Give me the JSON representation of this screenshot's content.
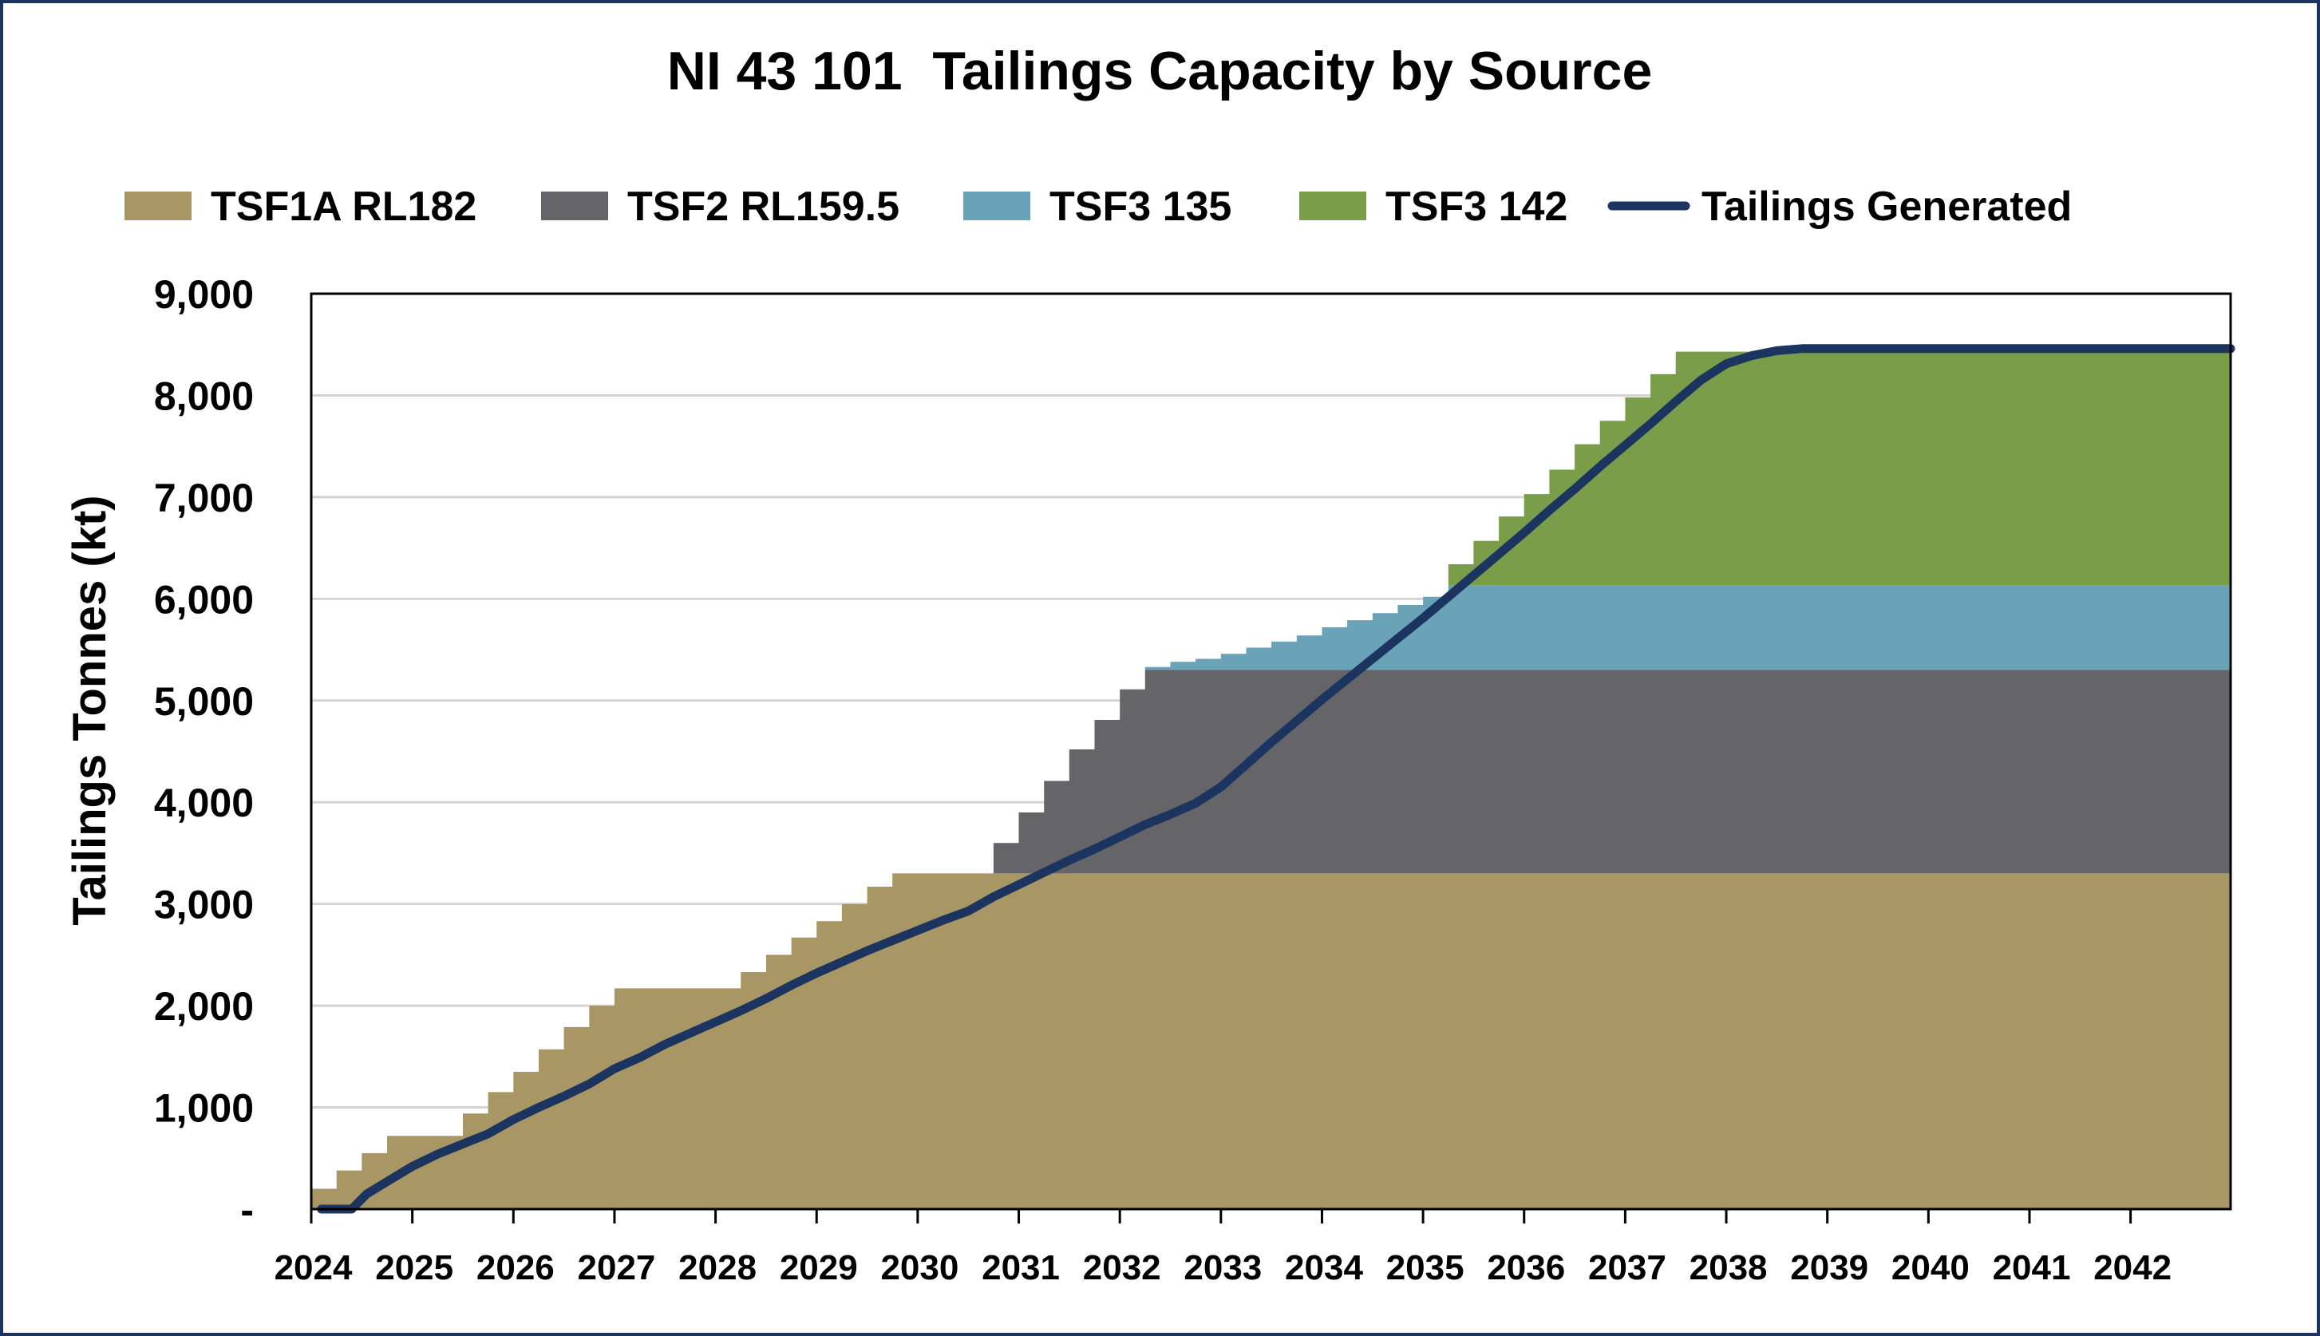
{
  "chart_data": {
    "type": "area",
    "title": "NI 43 101  Tailings Capacity by Source",
    "xlabel": "",
    "ylabel": "Tailings Tonnes (kt)",
    "ylim": [
      0,
      9000
    ],
    "xlim": [
      2024,
      2042.99
    ],
    "grid": true,
    "legend_position": "top",
    "y_ticks": [
      {
        "value": 0,
        "label": "-"
      },
      {
        "value": 1000,
        "label": "1,000"
      },
      {
        "value": 2000,
        "label": "2,000"
      },
      {
        "value": 3000,
        "label": "3,000"
      },
      {
        "value": 4000,
        "label": "4,000"
      },
      {
        "value": 5000,
        "label": "5,000"
      },
      {
        "value": 6000,
        "label": "6,000"
      },
      {
        "value": 7000,
        "label": "7,000"
      },
      {
        "value": 8000,
        "label": "8,000"
      },
      {
        "value": 9000,
        "label": "9,000"
      }
    ],
    "x_ticks": [
      "2024",
      "2025",
      "2026",
      "2027",
      "2028",
      "2029",
      "2030",
      "2031",
      "2032",
      "2033",
      "2034",
      "2035",
      "2036",
      "2037",
      "2038",
      "2039",
      "2040",
      "2041",
      "2042"
    ],
    "x_step": 0.25,
    "series": [
      {
        "name": "TSF1A RL182",
        "kind": "stacked-step-area",
        "color": "#A89664",
        "values": [
          200,
          380,
          550,
          720,
          720,
          720,
          940,
          1150,
          1350,
          1570,
          1790,
          2000,
          2170,
          2170,
          2170,
          2170,
          2170,
          2330,
          2500,
          2670,
          2830,
          3000,
          3170,
          3300,
          3300,
          3300,
          3300,
          3300,
          3300,
          3300,
          3300,
          3300,
          3300,
          3300,
          3300,
          3300,
          3300,
          3300,
          3300,
          3300,
          3300,
          3300,
          3300,
          3300,
          3300,
          3300,
          3300,
          3300,
          3300,
          3300,
          3300,
          3300,
          3300,
          3300,
          3300,
          3300,
          3300,
          3300,
          3300,
          3300,
          3300,
          3300,
          3300,
          3300,
          3300,
          3300,
          3300,
          3300,
          3300,
          3300,
          3300,
          3300,
          3300,
          3300,
          3300,
          3300
        ]
      },
      {
        "name": "TSF2 RL159.5",
        "kind": "stacked-step-area",
        "color": "#646469",
        "values": [
          0,
          0,
          0,
          0,
          0,
          0,
          0,
          0,
          0,
          0,
          0,
          0,
          0,
          0,
          0,
          0,
          0,
          0,
          0,
          0,
          0,
          0,
          0,
          0,
          0,
          0,
          0,
          300,
          600,
          910,
          1220,
          1510,
          1810,
          2000,
          2000,
          2000,
          2000,
          2000,
          2000,
          2000,
          2000,
          2000,
          2000,
          2000,
          2000,
          2000,
          2000,
          2000,
          2000,
          2000,
          2000,
          2000,
          2000,
          2000,
          2000,
          2000,
          2000,
          2000,
          2000,
          2000,
          2000,
          2000,
          2000,
          2000,
          2000,
          2000,
          2000,
          2000,
          2000,
          2000,
          2000,
          2000,
          2000,
          2000,
          2000,
          2000
        ]
      },
      {
        "name": "TSF3 135",
        "kind": "stacked-step-area",
        "color": "#6AA3B8",
        "values": [
          0,
          0,
          0,
          0,
          0,
          0,
          0,
          0,
          0,
          0,
          0,
          0,
          0,
          0,
          0,
          0,
          0,
          0,
          0,
          0,
          0,
          0,
          0,
          0,
          0,
          0,
          0,
          0,
          0,
          0,
          0,
          0,
          0,
          30,
          80,
          110,
          160,
          220,
          280,
          340,
          420,
          490,
          560,
          640,
          720,
          830,
          830,
          830,
          830,
          830,
          830,
          830,
          830,
          830,
          830,
          830,
          830,
          830,
          830,
          830,
          830,
          830,
          830,
          830,
          830,
          830,
          830,
          830,
          830,
          830,
          830,
          830,
          830,
          830,
          830,
          830
        ]
      },
      {
        "name": "TSF3 142",
        "kind": "stacked-step-area",
        "color": "#7A9D4A",
        "values": [
          0,
          0,
          0,
          0,
          0,
          0,
          0,
          0,
          0,
          0,
          0,
          0,
          0,
          0,
          0,
          0,
          0,
          0,
          0,
          0,
          0,
          0,
          0,
          0,
          0,
          0,
          0,
          0,
          0,
          0,
          0,
          0,
          0,
          0,
          0,
          0,
          0,
          0,
          0,
          0,
          0,
          0,
          0,
          0,
          0,
          210,
          440,
          680,
          900,
          1140,
          1390,
          1620,
          1850,
          2080,
          2300,
          2300,
          2300,
          2300,
          2300,
          2300,
          2300,
          2300,
          2300,
          2300,
          2300,
          2300,
          2300,
          2300,
          2300,
          2300,
          2300,
          2300,
          2300,
          2300,
          2300,
          2300
        ]
      },
      {
        "name": "Tailings Generated",
        "kind": "line",
        "color": "#1B3460",
        "points": [
          [
            2024.1,
            0
          ],
          [
            2024.4,
            0
          ],
          [
            2024.55,
            150
          ],
          [
            2024.75,
            270
          ],
          [
            2025.0,
            420
          ],
          [
            2025.25,
            540
          ],
          [
            2025.5,
            640
          ],
          [
            2025.75,
            740
          ],
          [
            2026.0,
            880
          ],
          [
            2026.25,
            1000
          ],
          [
            2026.5,
            1110
          ],
          [
            2026.75,
            1230
          ],
          [
            2027.0,
            1380
          ],
          [
            2027.25,
            1490
          ],
          [
            2027.5,
            1620
          ],
          [
            2027.75,
            1730
          ],
          [
            2028.0,
            1840
          ],
          [
            2028.25,
            1950
          ],
          [
            2028.5,
            2070
          ],
          [
            2028.75,
            2200
          ],
          [
            2029.0,
            2320
          ],
          [
            2029.25,
            2430
          ],
          [
            2029.5,
            2540
          ],
          [
            2029.75,
            2640
          ],
          [
            2030.0,
            2740
          ],
          [
            2030.25,
            2840
          ],
          [
            2030.5,
            2930
          ],
          [
            2030.75,
            3070
          ],
          [
            2031.0,
            3190
          ],
          [
            2031.25,
            3310
          ],
          [
            2031.5,
            3430
          ],
          [
            2031.75,
            3540
          ],
          [
            2032.0,
            3660
          ],
          [
            2032.25,
            3780
          ],
          [
            2032.5,
            3880
          ],
          [
            2032.75,
            3990
          ],
          [
            2033.0,
            4150
          ],
          [
            2033.25,
            4370
          ],
          [
            2033.5,
            4590
          ],
          [
            2033.75,
            4800
          ],
          [
            2034.0,
            5010
          ],
          [
            2034.25,
            5210
          ],
          [
            2034.5,
            5410
          ],
          [
            2034.75,
            5610
          ],
          [
            2035.0,
            5810
          ],
          [
            2035.25,
            6020
          ],
          [
            2035.5,
            6230
          ],
          [
            2035.75,
            6440
          ],
          [
            2036.0,
            6650
          ],
          [
            2036.25,
            6870
          ],
          [
            2036.5,
            7080
          ],
          [
            2036.75,
            7300
          ],
          [
            2037.0,
            7510
          ],
          [
            2037.25,
            7720
          ],
          [
            2037.5,
            7940
          ],
          [
            2037.75,
            8150
          ],
          [
            2038.0,
            8310
          ],
          [
            2038.25,
            8390
          ],
          [
            2038.5,
            8440
          ],
          [
            2038.75,
            8460
          ],
          [
            2039.0,
            8460
          ],
          [
            2040.0,
            8460
          ],
          [
            2041.0,
            8460
          ],
          [
            2042.0,
            8460
          ],
          [
            2042.99,
            8460
          ]
        ]
      }
    ]
  }
}
